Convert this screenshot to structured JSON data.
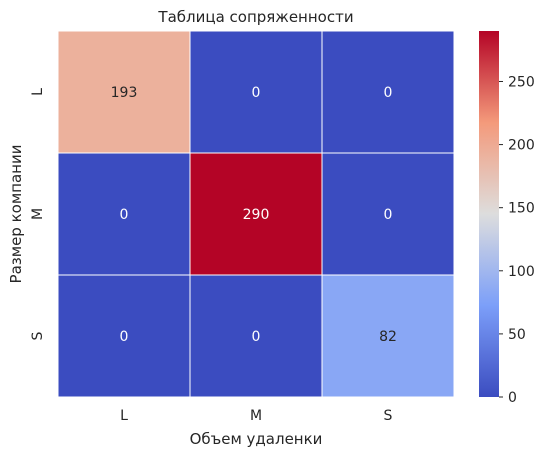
{
  "chart_data": {
    "type": "heatmap",
    "title": "Таблица сопряженности",
    "xlabel": "Объем удаленки",
    "ylabel": "Размер компании",
    "x_categories": [
      "L",
      "M",
      "S"
    ],
    "y_categories": [
      "L",
      "M",
      "S"
    ],
    "values": [
      [
        193,
        0,
        0
      ],
      [
        0,
        290,
        0
      ],
      [
        0,
        0,
        82
      ]
    ],
    "colormap": "coolwarm",
    "vmin": 0,
    "vmax": 290,
    "colorbar_ticks": [
      0,
      50,
      100,
      150,
      200,
      250
    ],
    "annotated": true,
    "cell_borders": "white",
    "colors": {
      "low": "#3b4cc0",
      "mid": "#dddddd",
      "high": "#b40426"
    }
  }
}
